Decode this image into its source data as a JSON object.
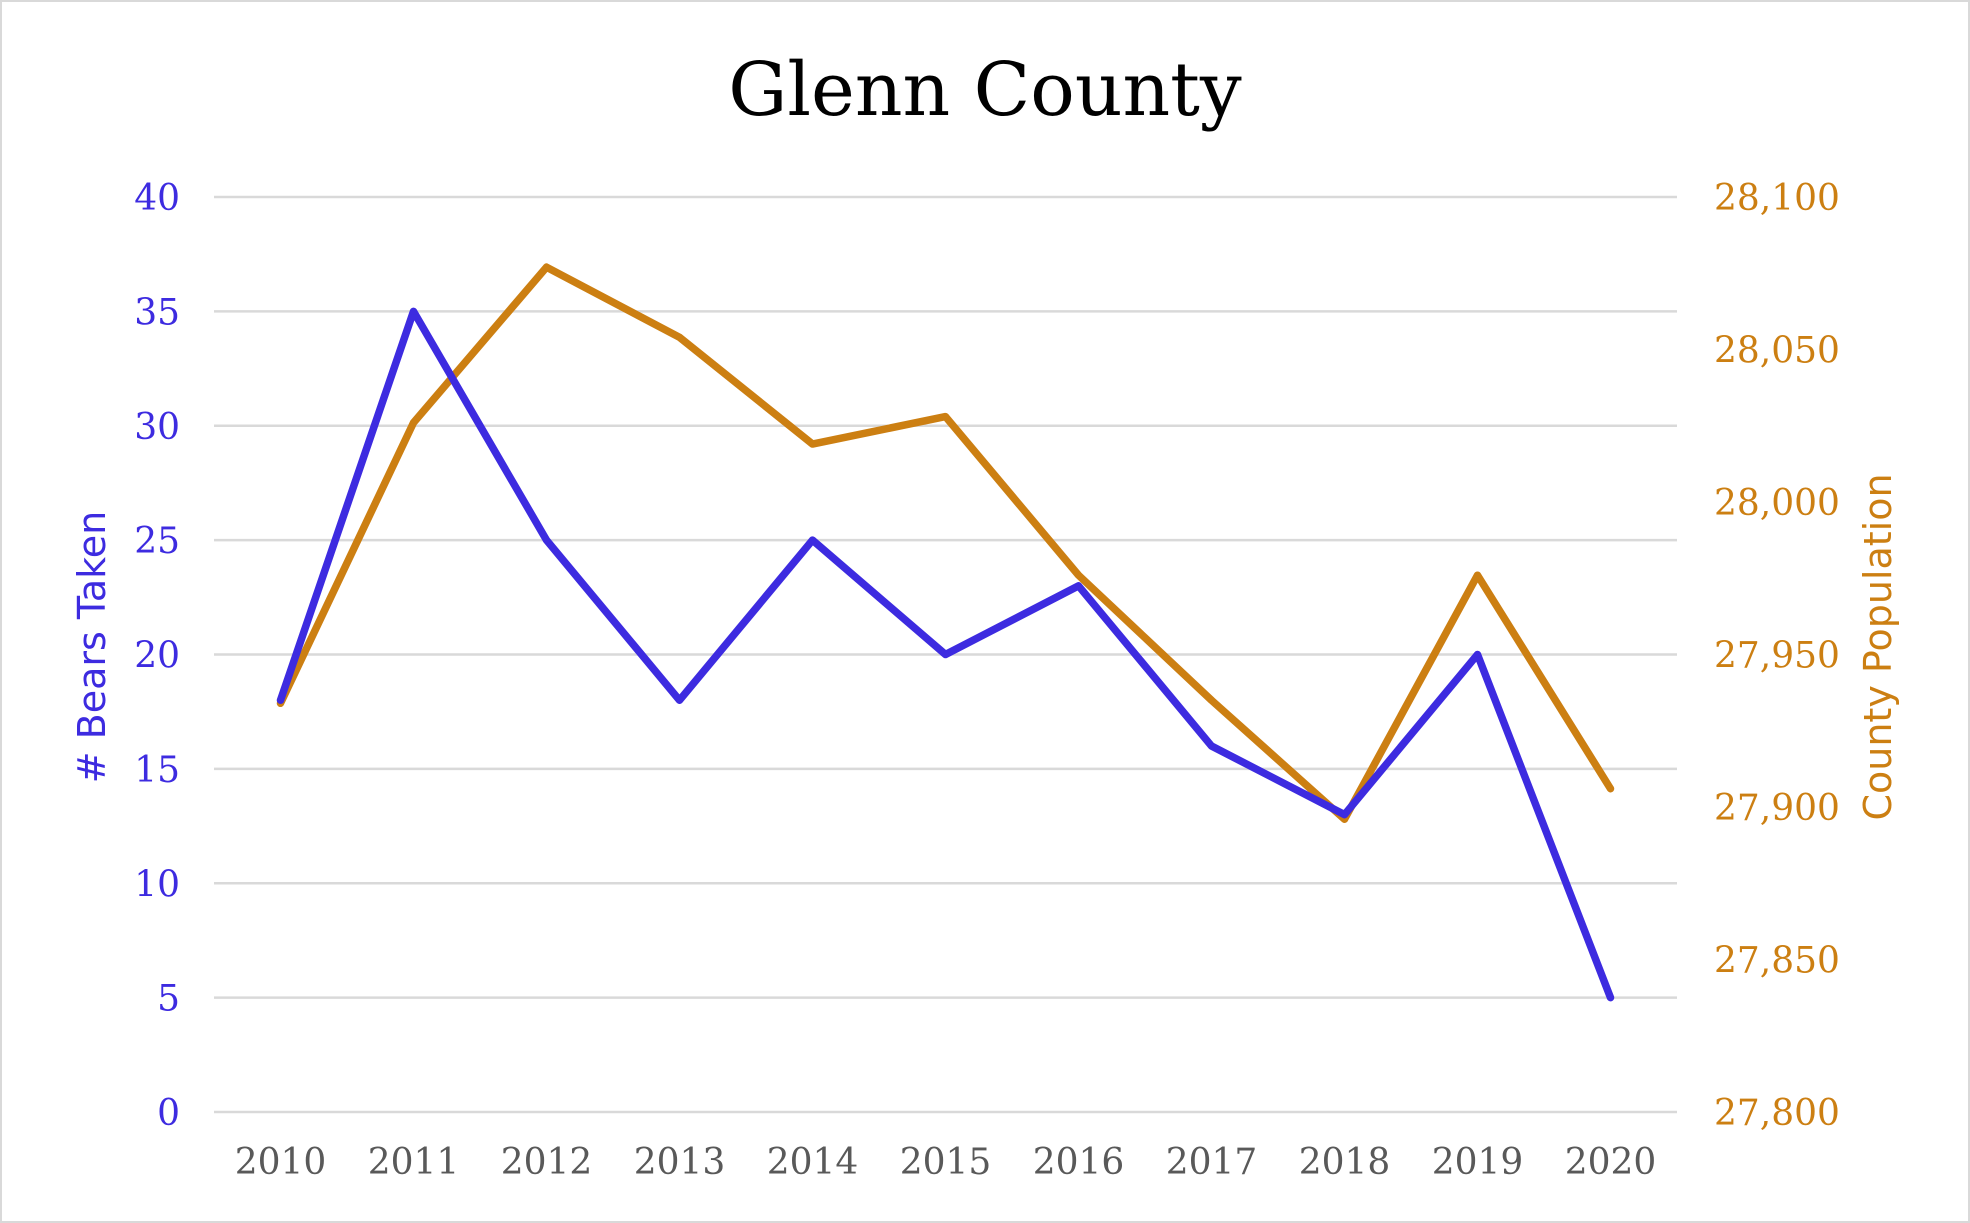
{
  "chart_data": {
    "type": "line",
    "title": "Glenn County",
    "x": [
      "2010",
      "2011",
      "2012",
      "2013",
      "2014",
      "2015",
      "2016",
      "2017",
      "2018",
      "2019",
      "2020"
    ],
    "series": [
      {
        "axis": "left",
        "color": "#3d2be0",
        "values": [
          18,
          35,
          25,
          18,
          25,
          20,
          23,
          16,
          13,
          20,
          5
        ]
      },
      {
        "axis": "right",
        "color": "#cc7f12",
        "values": [
          27934,
          28026,
          28077,
          28054,
          28019,
          28028,
          27976,
          27935,
          27896,
          27976,
          27906
        ]
      }
    ],
    "y_left": {
      "label": "# Bears Taken",
      "ylim": [
        0,
        40
      ],
      "ticks": [
        "0",
        "5",
        "10",
        "15",
        "20",
        "25",
        "30",
        "35",
        "40"
      ],
      "tick_values": [
        0,
        5,
        10,
        15,
        20,
        25,
        30,
        35,
        40
      ]
    },
    "y_right": {
      "label": "County Population",
      "ylim": [
        27800,
        28100
      ],
      "ticks": [
        "27,800",
        "27,850",
        "27,900",
        "27,950",
        "28,000",
        "28,050",
        "28,100"
      ],
      "tick_values": [
        27800,
        27850,
        27900,
        27950,
        28000,
        28050,
        28100
      ]
    },
    "grid": true,
    "legend": "none"
  }
}
